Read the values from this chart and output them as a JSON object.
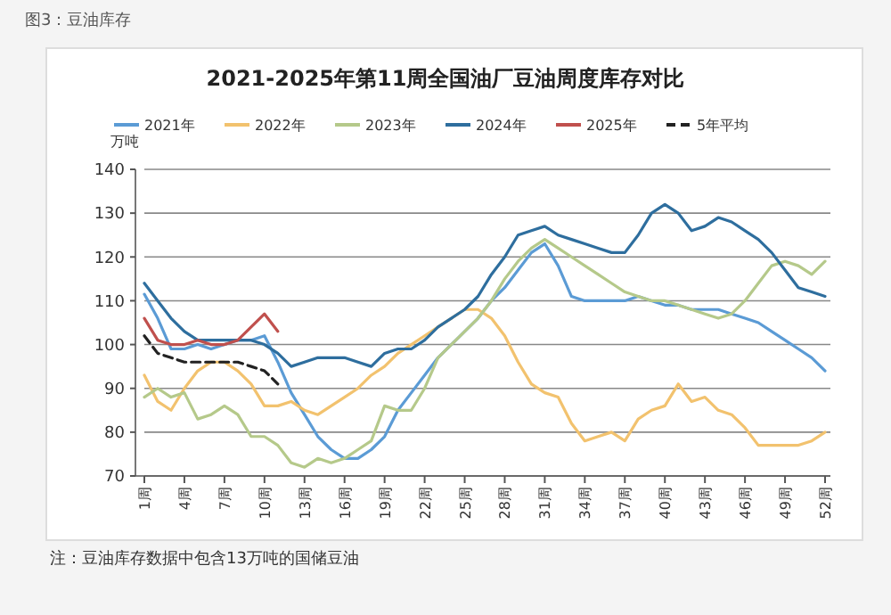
{
  "chart_data": {
    "type": "line",
    "title": "2021-2025年第11周全国油厂豆油周度库存对比",
    "ylabel": "万吨",
    "annotations": [
      "图3：豆油库存",
      "注：豆油库存数据中包含13万吨的国储豆油"
    ],
    "categories": [
      "1周",
      null,
      null,
      "4周",
      null,
      null,
      "7周",
      null,
      null,
      "10周",
      null,
      null,
      "13周",
      null,
      null,
      "16周",
      null,
      null,
      "19周",
      null,
      null,
      "22周",
      null,
      null,
      "25周",
      null,
      null,
      "28周",
      null,
      null,
      "31周",
      null,
      null,
      "34周",
      null,
      null,
      "37周",
      null,
      null,
      "40周",
      null,
      null,
      "43周",
      null,
      null,
      "46周",
      null,
      null,
      "49周",
      null,
      null,
      "52周"
    ],
    "ylim": [
      70,
      140
    ],
    "yticks": [
      70,
      80,
      90,
      100,
      110,
      120,
      130,
      140
    ],
    "grid": "y",
    "legend": "top",
    "marker": "none",
    "line_style": "solid",
    "series": [
      {
        "name": "2021年",
        "color": "#5b9bd5",
        "values": [
          111.5,
          106,
          99,
          99,
          100,
          99,
          100,
          101,
          101,
          102,
          96,
          89,
          84,
          79,
          76,
          74,
          74,
          76,
          79,
          85,
          89,
          93,
          97,
          100,
          103,
          106,
          110,
          113,
          117,
          121,
          123,
          118,
          111,
          110,
          110,
          110,
          110,
          111,
          110,
          109,
          109,
          108,
          108,
          108,
          107,
          106,
          105,
          103,
          101,
          99,
          97,
          94
        ]
      },
      {
        "name": "2022年",
        "color": "#f2c26e",
        "values": [
          93,
          87,
          85,
          90,
          94,
          96,
          96,
          94,
          91,
          86,
          86,
          87,
          85,
          84,
          86,
          88,
          90,
          93,
          95,
          98,
          100,
          102,
          104,
          106,
          108,
          108,
          106,
          102,
          96,
          91,
          89,
          88,
          82,
          78,
          79,
          80,
          78,
          83,
          85,
          86,
          91,
          87,
          88,
          85,
          84,
          81,
          77,
          77,
          77,
          77,
          78,
          80
        ]
      },
      {
        "name": "2023年",
        "color": "#b5c98a",
        "values": [
          88,
          90,
          88,
          89,
          83,
          84,
          86,
          84,
          79,
          79,
          77,
          73,
          72,
          74,
          73,
          74,
          76,
          78,
          86,
          85,
          85,
          90,
          97,
          100,
          103,
          106,
          110,
          115,
          119,
          122,
          124,
          122,
          120,
          118,
          116,
          114,
          112,
          111,
          110,
          110,
          109,
          108,
          107,
          106,
          107,
          110,
          114,
          118,
          119,
          118,
          116,
          119
        ]
      },
      {
        "name": "2024年",
        "color": "#2e6e9e",
        "values": [
          114,
          110,
          106,
          103,
          101,
          101,
          101,
          101,
          101,
          100,
          98,
          95,
          96,
          97,
          97,
          97,
          96,
          95,
          98,
          99,
          99,
          101,
          104,
          106,
          108,
          111,
          116,
          120,
          125,
          126,
          127,
          125,
          124,
          123,
          122,
          121,
          121,
          125,
          130,
          132,
          130,
          126,
          127,
          129,
          128,
          126,
          124,
          121,
          117,
          113,
          112,
          111
        ]
      },
      {
        "name": "2025年",
        "color": "#c0504d",
        "values": [
          106,
          101,
          100,
          100,
          101,
          100,
          100,
          101,
          104,
          107,
          103,
          null,
          null,
          null,
          null,
          null,
          null,
          null,
          null,
          null,
          null,
          null,
          null,
          null,
          null,
          null,
          null,
          null,
          null,
          null,
          null,
          null,
          null,
          null,
          null,
          null,
          null,
          null,
          null,
          null,
          null,
          null,
          null,
          null,
          null,
          null,
          null,
          null,
          null,
          null,
          null,
          null
        ]
      },
      {
        "name": "5年平均",
        "color": "#222222",
        "line_style": "dashed",
        "values": [
          102,
          98,
          97,
          96,
          96,
          96,
          96,
          96,
          95,
          94,
          91,
          null,
          null,
          null,
          null,
          null,
          null,
          null,
          null,
          null,
          null,
          null,
          null,
          null,
          null,
          null,
          null,
          null,
          null,
          null,
          null,
          null,
          null,
          null,
          null,
          null,
          null,
          null,
          null,
          null,
          null,
          null,
          null,
          null,
          null,
          null,
          null,
          null,
          null,
          null,
          null,
          null
        ]
      }
    ]
  }
}
